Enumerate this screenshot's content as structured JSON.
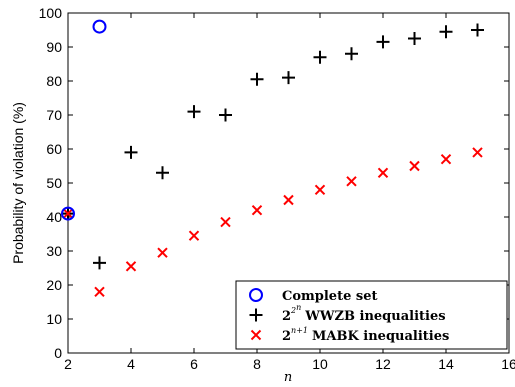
{
  "chart_data": {
    "type": "scatter",
    "xlabel": "n",
    "ylabel": "Probability of violation (%)",
    "xlim": [
      2,
      16
    ],
    "ylim": [
      0,
      100
    ],
    "xticks": [
      2,
      4,
      6,
      8,
      10,
      12,
      14,
      16
    ],
    "yticks": [
      0,
      10,
      20,
      30,
      40,
      50,
      60,
      70,
      80,
      90,
      100
    ],
    "grid": false,
    "legend_position": "bottom-right",
    "series": [
      {
        "name": "Complete set",
        "marker": "circle",
        "color": "#0000ff",
        "x": [
          2,
          3
        ],
        "y": [
          41,
          96
        ]
      },
      {
        "name": "WWZB inequalities",
        "name_prefix": "2",
        "name_sup": "2",
        "name_sup_sup": "n",
        "marker": "plus",
        "color": "#000000",
        "x": [
          2,
          3,
          4,
          5,
          6,
          7,
          8,
          9,
          10,
          11,
          12,
          13,
          14,
          15
        ],
        "y": [
          41,
          26.5,
          59,
          53,
          71,
          70,
          80.5,
          81,
          87,
          88,
          91.5,
          92.5,
          94.5,
          95
        ]
      },
      {
        "name": "MABK inequalities",
        "name_prefix": "2",
        "name_sup": "n+1",
        "marker": "cross",
        "color": "#ff0000",
        "x": [
          2,
          3,
          4,
          5,
          6,
          7,
          8,
          9,
          10,
          11,
          12,
          13,
          14,
          15
        ],
        "y": [
          41,
          18,
          25.5,
          29.5,
          34.5,
          38.5,
          42,
          45,
          48,
          50.5,
          53,
          55,
          57,
          59
        ]
      }
    ]
  }
}
